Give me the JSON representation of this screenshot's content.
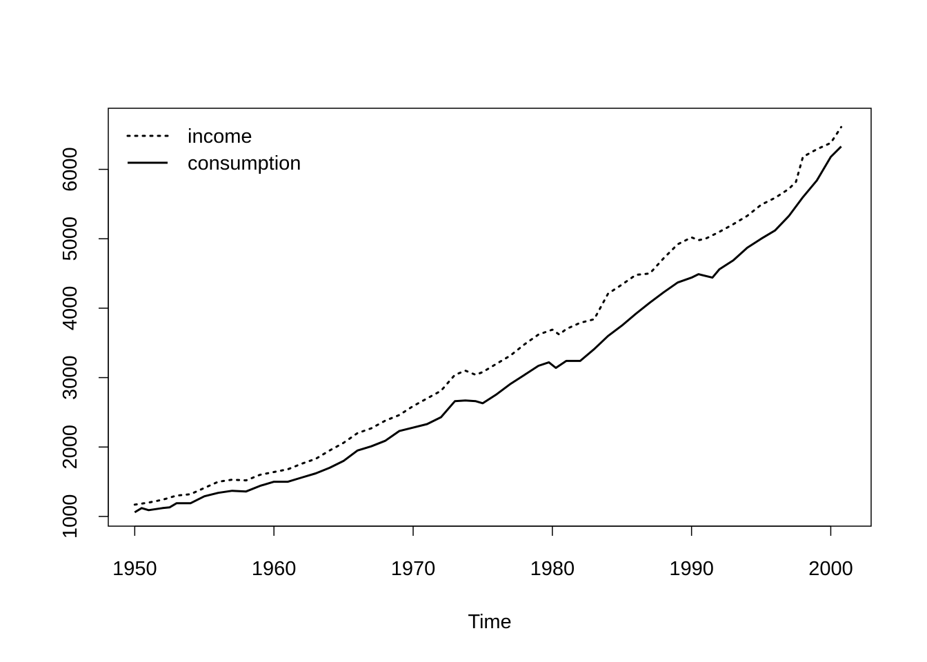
{
  "chart_data": {
    "type": "line",
    "title": "",
    "xlabel": "Time",
    "ylabel": "",
    "xlim": [
      1948.1,
      2002.9
    ],
    "ylim": [
      860,
      6880
    ],
    "x_ticks": [
      1950,
      1960,
      1970,
      1980,
      1990,
      2000
    ],
    "y_ticks": [
      1000,
      2000,
      3000,
      4000,
      5000,
      6000
    ],
    "x_tick_labels": [
      "1950",
      "1960",
      "1970",
      "1980",
      "1990",
      "2000"
    ],
    "y_tick_labels": [
      "1000",
      "2000",
      "3000",
      "4000",
      "5000",
      "6000"
    ],
    "grid": false,
    "legend_position": "top-left",
    "legend": [
      {
        "label": "income",
        "style": "dotted"
      },
      {
        "label": "consumption",
        "style": "solid"
      }
    ],
    "series": [
      {
        "name": "income",
        "style": "dotted",
        "color": "#000000",
        "x": [
          1950,
          1951,
          1952,
          1953,
          1954,
          1955,
          1956,
          1957,
          1958,
          1959,
          1960,
          1961,
          1962,
          1963,
          1964,
          1965,
          1966,
          1967,
          1968,
          1969,
          1970,
          1971,
          1972,
          1973,
          1973.75,
          1974.5,
          1975,
          1976,
          1977,
          1978,
          1979,
          1980,
          1980.5,
          1981,
          1982,
          1983,
          1984,
          1985,
          1986,
          1987,
          1988,
          1989,
          1990,
          1990.5,
          1991,
          1992,
          1993,
          1994,
          1995,
          1996,
          1997,
          1997.5,
          1998,
          1999,
          2000,
          2000.75
        ],
        "values": [
          1170,
          1200,
          1240,
          1300,
          1320,
          1410,
          1500,
          1530,
          1520,
          1600,
          1640,
          1680,
          1760,
          1830,
          1950,
          2060,
          2200,
          2270,
          2380,
          2460,
          2590,
          2700,
          2810,
          3040,
          3100,
          3040,
          3080,
          3200,
          3320,
          3480,
          3620,
          3690,
          3620,
          3700,
          3790,
          3840,
          4210,
          4340,
          4480,
          4500,
          4720,
          4920,
          5020,
          4980,
          5000,
          5100,
          5210,
          5330,
          5490,
          5590,
          5720,
          5820,
          6180,
          6290,
          6380,
          6610
        ]
      },
      {
        "name": "consumption",
        "style": "solid",
        "color": "#000000",
        "x": [
          1950,
          1950.5,
          1951,
          1952,
          1952.5,
          1953,
          1954,
          1955,
          1956,
          1957,
          1958,
          1959,
          1960,
          1961,
          1962,
          1963,
          1964,
          1965,
          1966,
          1967,
          1968,
          1969,
          1970,
          1971,
          1972,
          1973,
          1973.75,
          1974.5,
          1975,
          1976,
          1977,
          1978,
          1979,
          1979.75,
          1980.25,
          1981,
          1982,
          1983,
          1984,
          1985,
          1986,
          1987,
          1988,
          1989,
          1990,
          1990.5,
          1991.5,
          1992,
          1993,
          1994,
          1995,
          1996,
          1997,
          1998,
          1999,
          2000,
          2000.75
        ],
        "values": [
          1060,
          1120,
          1090,
          1120,
          1130,
          1190,
          1190,
          1290,
          1340,
          1370,
          1360,
          1440,
          1500,
          1500,
          1560,
          1620,
          1700,
          1800,
          1950,
          2010,
          2090,
          2230,
          2280,
          2330,
          2430,
          2660,
          2670,
          2660,
          2630,
          2760,
          2910,
          3040,
          3170,
          3220,
          3140,
          3240,
          3240,
          3410,
          3600,
          3750,
          3920,
          4080,
          4230,
          4370,
          4440,
          4490,
          4440,
          4560,
          4690,
          4870,
          5000,
          5120,
          5330,
          5600,
          5840,
          6180,
          6330
        ]
      }
    ]
  }
}
